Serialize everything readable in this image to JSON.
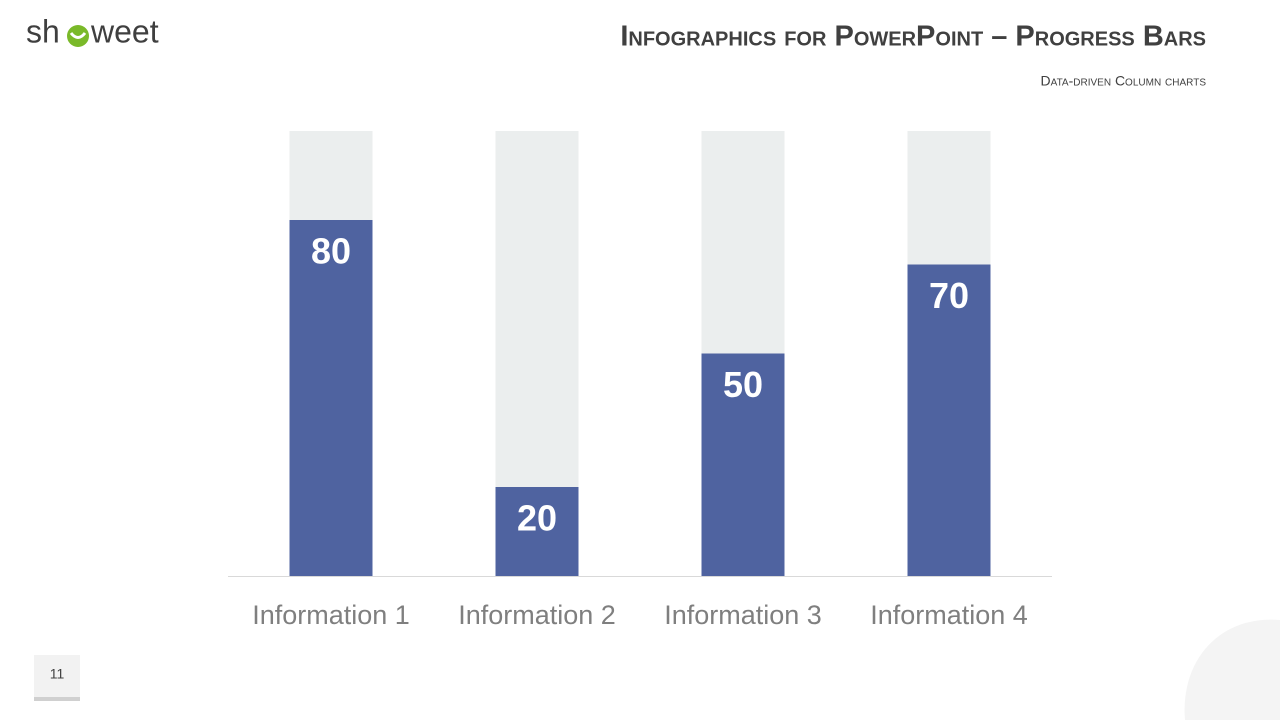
{
  "logo": {
    "left": "sh",
    "right": "weet"
  },
  "page_number": "11",
  "chart_data": {
    "type": "bar",
    "title": "Infographics for PowerPoint – Progress Bars",
    "subtitle": "Data-driven Column charts",
    "categories": [
      "Information 1",
      "Information 2",
      "Information 3",
      "Information 4"
    ],
    "values": [
      80,
      20,
      50,
      70
    ],
    "color": "#4f63a0",
    "track_color": "#ebeeee",
    "ylim": [
      0,
      100
    ],
    "grid": false
  }
}
